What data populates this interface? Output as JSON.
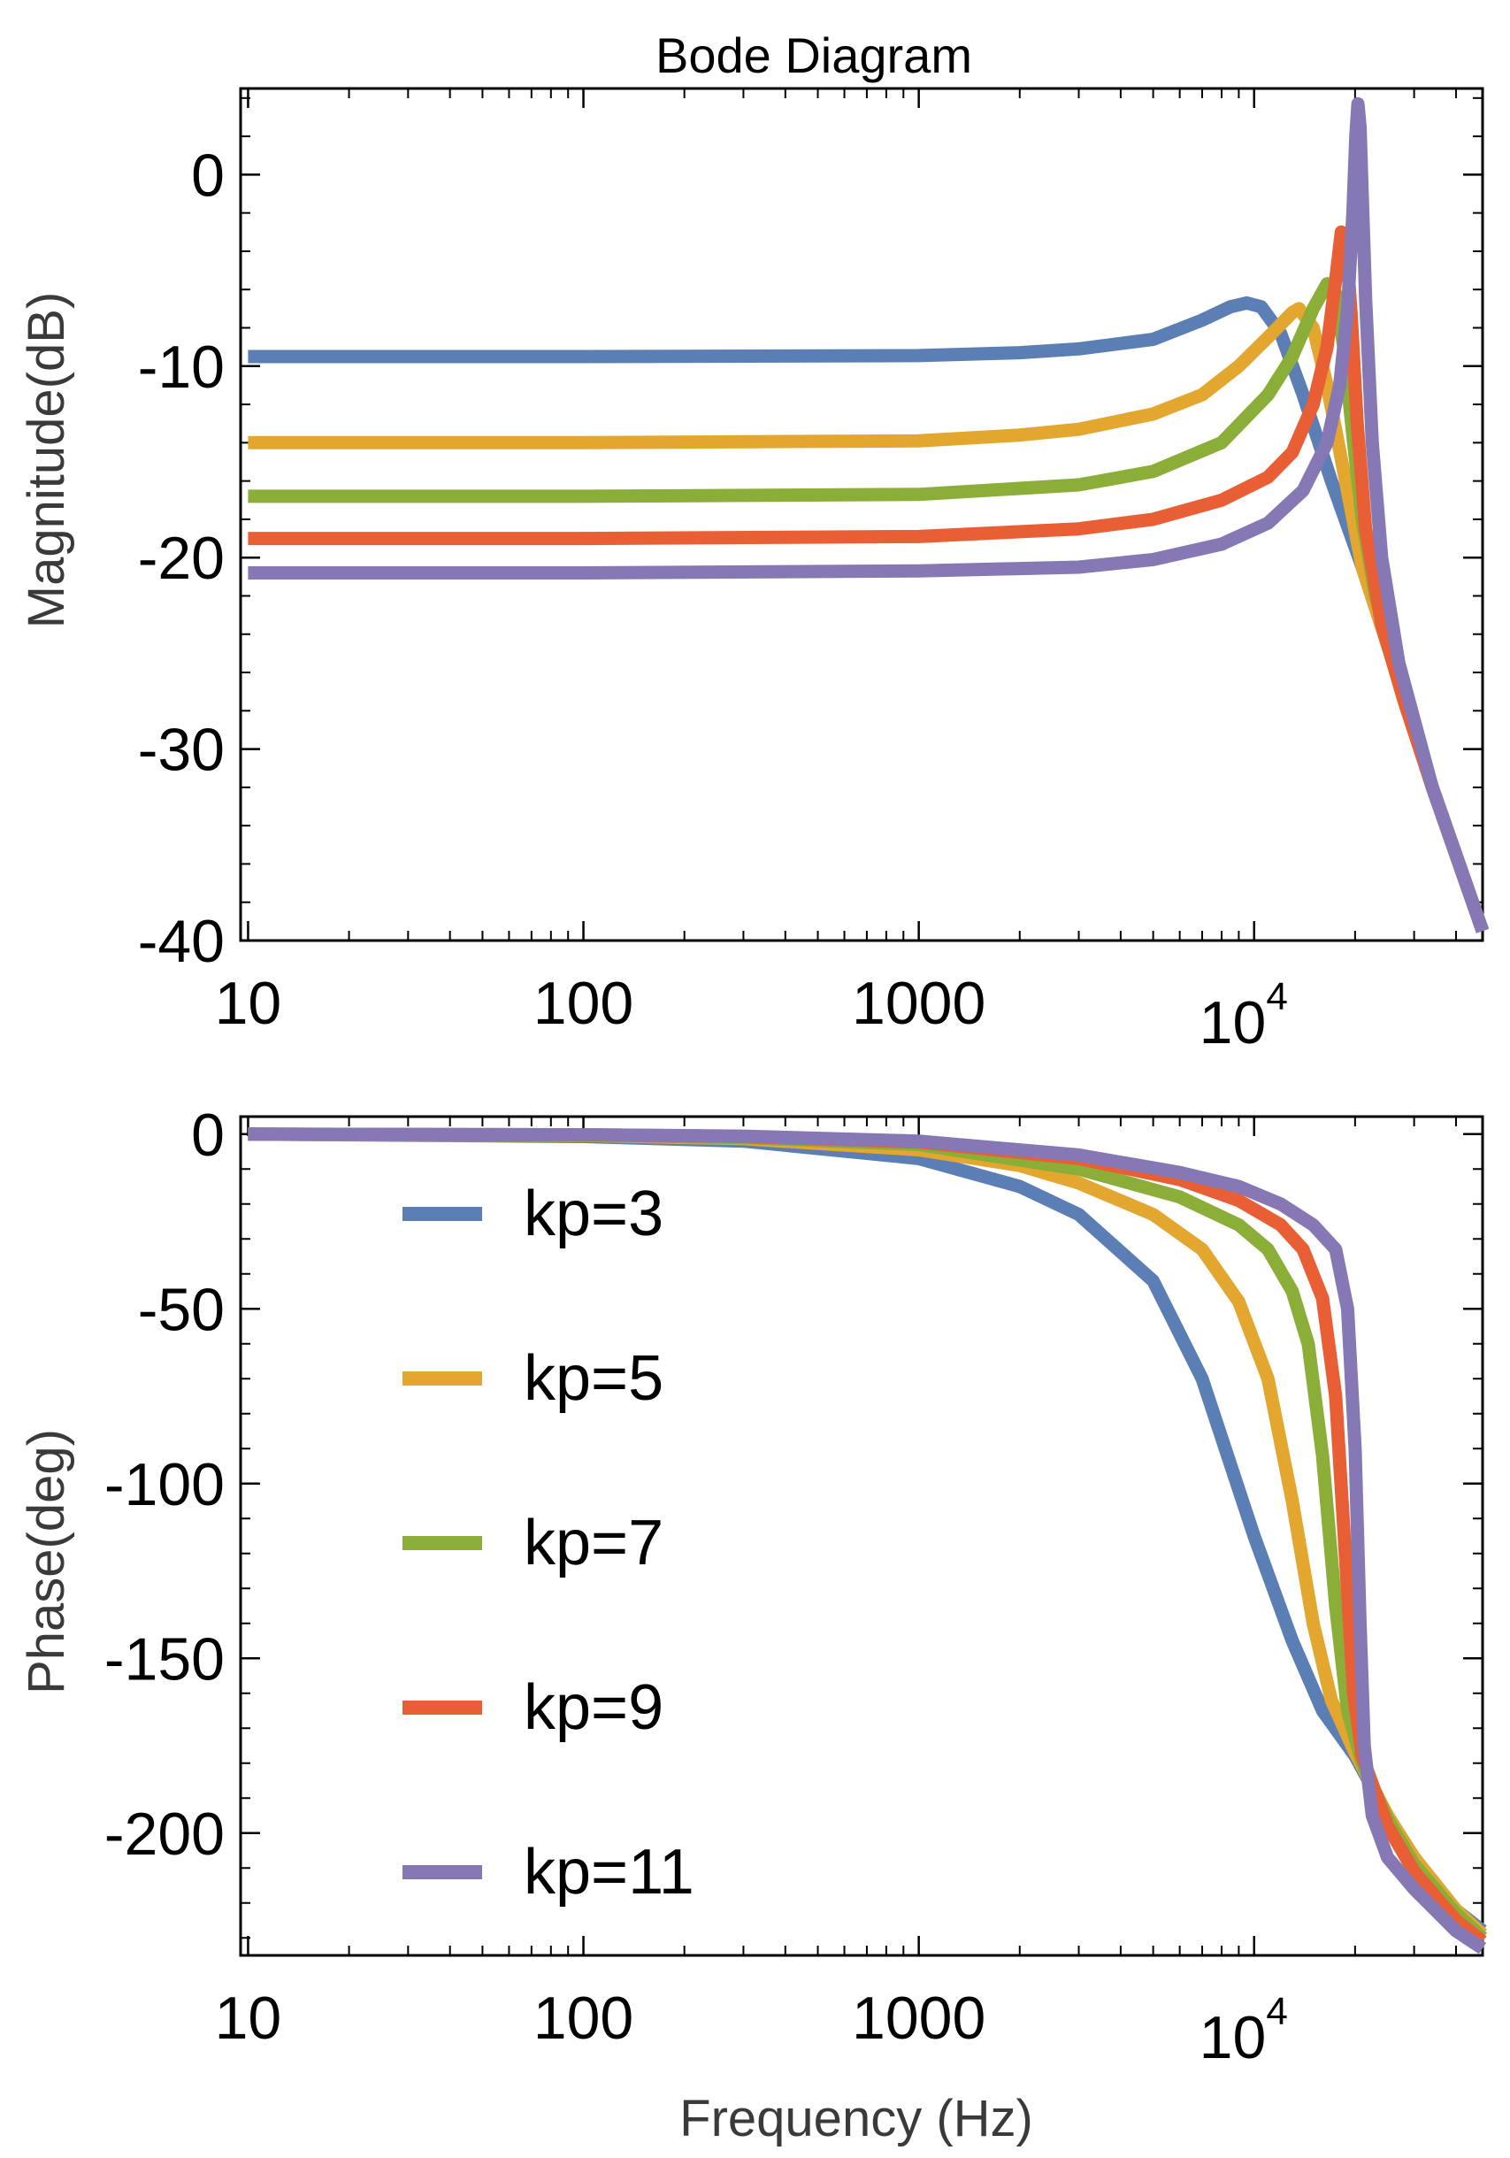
{
  "chart_data": [
    {
      "type": "line",
      "title": "Bode Diagram",
      "xlabel": "",
      "ylabel": "Magnitude(dB)",
      "xscale": "log",
      "xlim": [
        9.5,
        48000
      ],
      "ylim": [
        -40,
        4.5
      ],
      "x_ticks": [
        {
          "base": "10"
        },
        {
          "base": "100"
        },
        {
          "base": "1000"
        },
        {
          "base": "10",
          "exp": "4"
        }
      ],
      "y_ticks": [
        "0",
        "-10",
        "-20",
        "-30",
        "-40"
      ],
      "series": [
        {
          "name": "kp=3",
          "color": "#5b7fb5",
          "points": [
            [
              10,
              -9.5
            ],
            [
              100,
              -9.5
            ],
            [
              1000,
              -9.45
            ],
            [
              2000,
              -9.3
            ],
            [
              3000,
              -9.1
            ],
            [
              5000,
              -8.6
            ],
            [
              7000,
              -7.6
            ],
            [
              8500,
              -6.9
            ],
            [
              9500,
              -6.7
            ],
            [
              10500,
              -6.9
            ],
            [
              12000,
              -8.3
            ],
            [
              14000,
              -11.5
            ],
            [
              17000,
              -16
            ],
            [
              21000,
              -20.5
            ],
            [
              26000,
              -25.5
            ],
            [
              34000,
              -32
            ],
            [
              48000,
              -39.5
            ]
          ]
        },
        {
          "name": "kp=5",
          "color": "#e3a72f",
          "points": [
            [
              10,
              -14
            ],
            [
              100,
              -14
            ],
            [
              1000,
              -13.9
            ],
            [
              2000,
              -13.6
            ],
            [
              3000,
              -13.3
            ],
            [
              5000,
              -12.5
            ],
            [
              7000,
              -11.5
            ],
            [
              9000,
              -10
            ],
            [
              11000,
              -8.5
            ],
            [
              13000,
              -7.2
            ],
            [
              13600,
              -7
            ],
            [
              15000,
              -8
            ],
            [
              16500,
              -11
            ],
            [
              18500,
              -15.5
            ],
            [
              21000,
              -20.5
            ],
            [
              26000,
              -25.5
            ],
            [
              34000,
              -32
            ],
            [
              48000,
              -39.5
            ]
          ]
        },
        {
          "name": "kp=7",
          "color": "#8bae38",
          "points": [
            [
              10,
              -16.8
            ],
            [
              100,
              -16.8
            ],
            [
              1000,
              -16.7
            ],
            [
              3000,
              -16.2
            ],
            [
              5000,
              -15.5
            ],
            [
              8000,
              -14
            ],
            [
              11000,
              -11.5
            ],
            [
              13000,
              -9.5
            ],
            [
              15000,
              -7
            ],
            [
              16500,
              -5.7
            ],
            [
              17500,
              -6.2
            ],
            [
              18500,
              -9
            ],
            [
              19800,
              -14
            ],
            [
              21000,
              -18
            ],
            [
              23000,
              -22
            ],
            [
              27000,
              -26.5
            ],
            [
              34000,
              -32
            ],
            [
              48000,
              -39.5
            ]
          ]
        },
        {
          "name": "kp=9",
          "color": "#e95f35",
          "points": [
            [
              10,
              -19
            ],
            [
              100,
              -19
            ],
            [
              1000,
              -18.9
            ],
            [
              3000,
              -18.5
            ],
            [
              5000,
              -18
            ],
            [
              8000,
              -17
            ],
            [
              11000,
              -15.8
            ],
            [
              13000,
              -14.5
            ],
            [
              15000,
              -12
            ],
            [
              16500,
              -9
            ],
            [
              17500,
              -5.5
            ],
            [
              18200,
              -3
            ],
            [
              18800,
              -3.5
            ],
            [
              19500,
              -7.5
            ],
            [
              20300,
              -13
            ],
            [
              21500,
              -18.5
            ],
            [
              24000,
              -23.5
            ],
            [
              28000,
              -27.5
            ],
            [
              34000,
              -32
            ],
            [
              48000,
              -39.5
            ]
          ]
        },
        {
          "name": "kp=11",
          "color": "#8678b4",
          "points": [
            [
              10,
              -20.8
            ],
            [
              100,
              -20.8
            ],
            [
              1000,
              -20.7
            ],
            [
              3000,
              -20.5
            ],
            [
              5000,
              -20.1
            ],
            [
              8000,
              -19.3
            ],
            [
              11000,
              -18.2
            ],
            [
              14000,
              -16.5
            ],
            [
              16500,
              -14
            ],
            [
              18000,
              -11
            ],
            [
              19000,
              -7
            ],
            [
              19700,
              -2
            ],
            [
              20100,
              2
            ],
            [
              20400,
              3.7
            ],
            [
              20700,
              2.5
            ],
            [
              21000,
              -1
            ],
            [
              21500,
              -6.5
            ],
            [
              22500,
              -14
            ],
            [
              24000,
              -20
            ],
            [
              27000,
              -25.5
            ],
            [
              34000,
              -32
            ],
            [
              48000,
              -39.5
            ]
          ]
        }
      ]
    },
    {
      "type": "line",
      "title": "",
      "xlabel": "Frequency (Hz)",
      "ylabel": "Phase(deg)",
      "xscale": "log",
      "xlim": [
        9.5,
        48000
      ],
      "ylim": [
        -235,
        5
      ],
      "x_ticks": [
        {
          "base": "10"
        },
        {
          "base": "100"
        },
        {
          "base": "1000"
        },
        {
          "base": "10",
          "exp": "4"
        }
      ],
      "y_ticks": [
        "0",
        "-50",
        "-100",
        "-150",
        "-200"
      ],
      "legend": "upper-left",
      "series": [
        {
          "name": "kp=3",
          "color": "#5b7fb5",
          "points": [
            [
              10,
              0
            ],
            [
              100,
              -0.7
            ],
            [
              300,
              -2
            ],
            [
              1000,
              -7
            ],
            [
              2000,
              -15
            ],
            [
              3000,
              -23
            ],
            [
              5000,
              -42
            ],
            [
              7000,
              -70
            ],
            [
              10000,
              -115
            ],
            [
              13000,
              -145
            ],
            [
              16000,
              -165
            ],
            [
              20000,
              -178
            ],
            [
              25000,
              -195
            ],
            [
              30000,
              -207
            ],
            [
              40000,
              -222
            ],
            [
              48000,
              -228
            ]
          ]
        },
        {
          "name": "kp=5",
          "color": "#e3a72f",
          "points": [
            [
              10,
              0
            ],
            [
              100,
              -0.4
            ],
            [
              300,
              -1.3
            ],
            [
              1000,
              -4.5
            ],
            [
              2000,
              -9
            ],
            [
              3000,
              -14
            ],
            [
              5000,
              -23
            ],
            [
              7000,
              -33
            ],
            [
              9000,
              -48
            ],
            [
              11000,
              -70
            ],
            [
              13000,
              -105
            ],
            [
              15000,
              -140
            ],
            [
              17000,
              -162
            ],
            [
              20000,
              -177
            ],
            [
              25000,
              -195
            ],
            [
              30000,
              -207
            ],
            [
              40000,
              -222
            ],
            [
              48000,
              -229
            ]
          ]
        },
        {
          "name": "kp=7",
          "color": "#8bae38",
          "points": [
            [
              10,
              0
            ],
            [
              100,
              -0.3
            ],
            [
              300,
              -1
            ],
            [
              1000,
              -3
            ],
            [
              3000,
              -10
            ],
            [
              6000,
              -18
            ],
            [
              9000,
              -26
            ],
            [
              11000,
              -33
            ],
            [
              13000,
              -45
            ],
            [
              14500,
              -60
            ],
            [
              16000,
              -92
            ],
            [
              17500,
              -135
            ],
            [
              19000,
              -165
            ],
            [
              21000,
              -180
            ],
            [
              25000,
              -196
            ],
            [
              30000,
              -209
            ],
            [
              40000,
              -223
            ],
            [
              48000,
              -230
            ]
          ]
        },
        {
          "name": "kp=9",
          "color": "#e95f35",
          "points": [
            [
              10,
              0
            ],
            [
              100,
              -0.2
            ],
            [
              300,
              -0.7
            ],
            [
              1000,
              -2.3
            ],
            [
              3000,
              -7
            ],
            [
              6000,
              -13
            ],
            [
              9000,
              -19
            ],
            [
              12000,
              -26
            ],
            [
              14000,
              -33
            ],
            [
              16000,
              -47
            ],
            [
              17500,
              -75
            ],
            [
              18700,
              -120
            ],
            [
              19800,
              -160
            ],
            [
              21000,
              -178
            ],
            [
              25000,
              -198
            ],
            [
              30000,
              -211
            ],
            [
              40000,
              -225
            ],
            [
              48000,
              -231
            ]
          ]
        },
        {
          "name": "kp=11",
          "color": "#8678b4",
          "points": [
            [
              10,
              0
            ],
            [
              100,
              -0.2
            ],
            [
              300,
              -0.6
            ],
            [
              1000,
              -2
            ],
            [
              3000,
              -6
            ],
            [
              6000,
              -11
            ],
            [
              9000,
              -15
            ],
            [
              12000,
              -20
            ],
            [
              15000,
              -26
            ],
            [
              17500,
              -33
            ],
            [
              19000,
              -50
            ],
            [
              20000,
              -90
            ],
            [
              20700,
              -140
            ],
            [
              21300,
              -175
            ],
            [
              22500,
              -195
            ],
            [
              25000,
              -207
            ],
            [
              30000,
              -216
            ],
            [
              40000,
              -228
            ],
            [
              48000,
              -233
            ]
          ]
        }
      ]
    }
  ]
}
